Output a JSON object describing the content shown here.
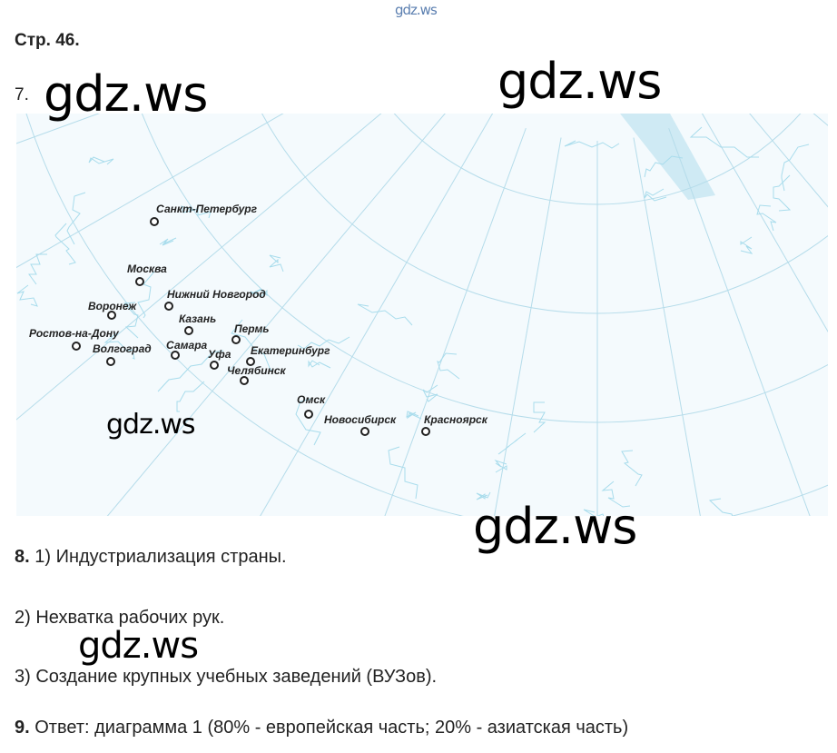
{
  "watermark": "gdz.ws",
  "page_label": "Стр. 46.",
  "task7": {
    "number": "7.",
    "cities": [
      "Санкт-Петербург",
      "Москва",
      "Нижний Новгород",
      "Воронеж",
      "Казань",
      "Пермь",
      "Ростов-на-Дону",
      "Волгоград",
      "Самара",
      "Уфа",
      "Екатеринбург",
      "Челябинск",
      "Омск",
      "Новосибирск",
      "Красноярск"
    ]
  },
  "task8": {
    "number": "8.",
    "items": [
      "1) Индустриализация страны.",
      "2) Нехватка рабочих рук.",
      "3) Создание крупных учебных заведений (ВУЗов)."
    ]
  },
  "task9": {
    "number": "9.",
    "text": "Ответ: диаграмма 1 (80% - европейская часть; 20% - азиатская часть)"
  },
  "colors": {
    "map_lines": "#9fd6e8",
    "sea": "#cfeaf4"
  }
}
